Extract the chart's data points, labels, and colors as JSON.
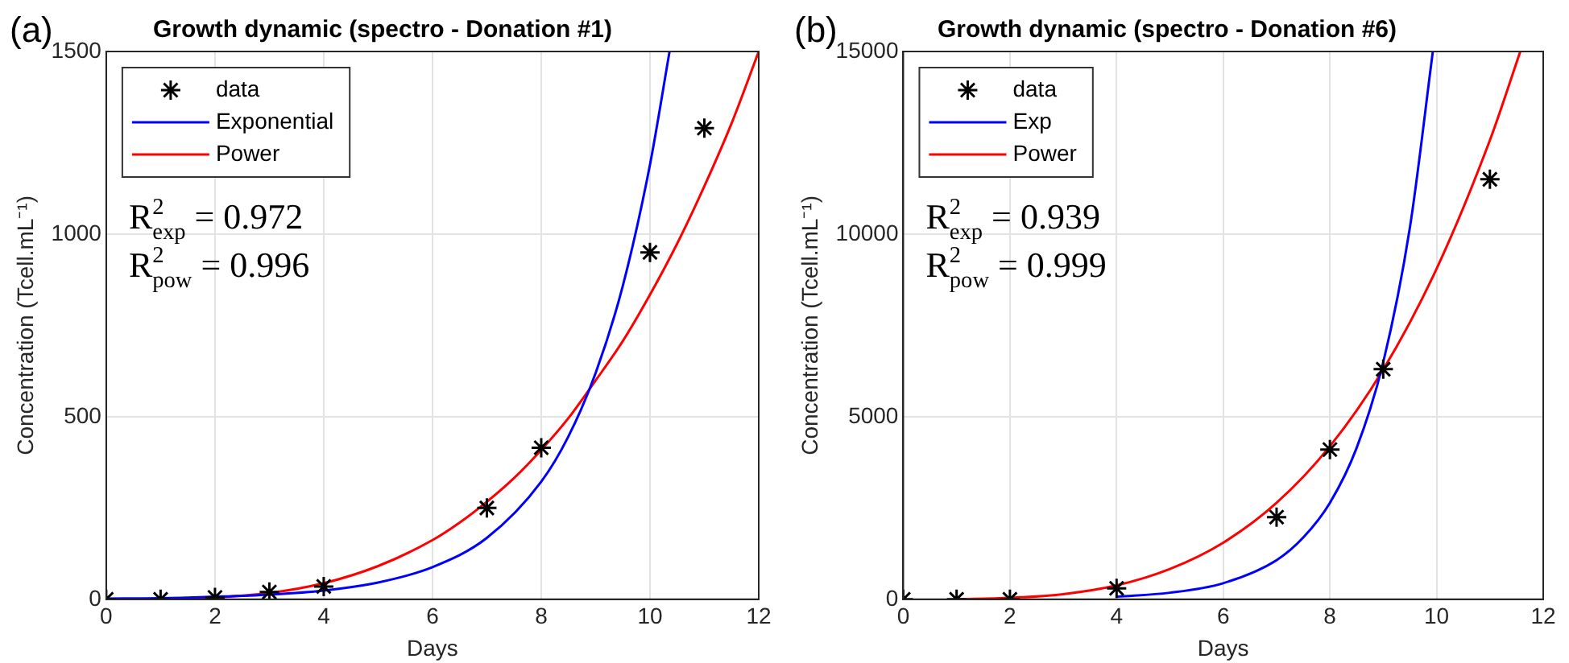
{
  "chart_data": [
    {
      "type": "line",
      "title": "Growth dynamic (spectro - Donation #1)",
      "xlabel": "Days",
      "ylabel": "Concentration (Tcell.mL⁻¹)",
      "annotations": [
        "(a)",
        "R$^{2}$$_{exp}$ = 0.972",
        "R$^{2}$$_{pow}$ = 0.996"
      ],
      "series": [
        {
          "name": "data",
          "type": "scatter",
          "color": "#000000",
          "marker": "cross",
          "x": [
            0,
            1,
            2,
            3,
            4,
            7,
            8,
            10,
            11
          ],
          "values": [
            0,
            0,
            5,
            20,
            35,
            250,
            415,
            950,
            1290
          ]
        },
        {
          "name": "Exponential",
          "type": "line",
          "color": "#0000ff",
          "x": [
            0,
            1,
            2,
            3,
            4,
            5,
            6,
            7,
            8,
            8.5,
            9,
            9.5,
            10,
            10.36
          ],
          "values": [
            2,
            3,
            7,
            13,
            24,
            46,
            88,
            168,
            322,
            446,
            619,
            858,
            1190,
            1500
          ]
        },
        {
          "name": "Power",
          "type": "line",
          "color": "#ff0000",
          "x": [
            0,
            1,
            2,
            3,
            4,
            5,
            6,
            6.5,
            7,
            7.5,
            8,
            8.5,
            9,
            9.5,
            10,
            10.5,
            11,
            11.5,
            12
          ],
          "values": [
            0,
            0,
            5,
            17,
            44,
            91,
            162,
            210,
            267,
            332,
            409,
            496,
            599,
            707,
            834,
            974,
            1131,
            1303,
            1500
          ]
        }
      ],
      "xlim": [
        0,
        12
      ],
      "xticks": [
        0,
        2,
        4,
        6,
        8,
        10,
        12
      ],
      "ylim": [
        0,
        1500
      ],
      "yticks": [
        0,
        500,
        1000,
        1500
      ],
      "grid": true,
      "legend": "top left",
      "line_style": "solid"
    },
    {
      "type": "line",
      "title": "Growth dynamic (spectro - Donation #6)",
      "xlabel": "Days",
      "ylabel": "Concentration (Tcell.mL⁻¹)",
      "annotations": [
        "(b)",
        "R$^{2}$$_{exp}$ = 0.939",
        "R$^{2}$$_{pow}$ = 0.999"
      ],
      "series": [
        {
          "name": "data",
          "type": "scatter",
          "color": "#000000",
          "marker": "cross",
          "x": [
            0,
            1,
            2,
            4,
            7,
            8,
            9,
            11
          ],
          "values": [
            0,
            0,
            0,
            300,
            2250,
            4100,
            6300,
            11500
          ]
        },
        {
          "name": "Exp",
          "type": "line",
          "color": "#0000ff",
          "x": [
            4,
            5,
            6,
            7,
            7.5,
            8,
            8.5,
            9,
            9.5,
            9.93
          ],
          "values": [
            70,
            180,
            440,
            1070,
            1690,
            2640,
            4140,
            6490,
            10180,
            15000
          ]
        },
        {
          "name": "Power",
          "type": "line",
          "color": "#ff0000",
          "x": [
            1,
            2,
            3,
            4,
            5,
            6,
            7,
            8,
            9,
            10,
            11,
            11.57
          ],
          "values": [
            0,
            40,
            140,
            380,
            830,
            1550,
            2640,
            4190,
            6290,
            9050,
            12570,
            15000
          ]
        }
      ],
      "xlim": [
        0,
        12
      ],
      "xticks": [
        0,
        2,
        4,
        6,
        8,
        10,
        12
      ],
      "ylim": [
        0,
        15000
      ],
      "yticks": [
        0,
        5000,
        10000,
        15000
      ],
      "grid": true,
      "legend": "top left",
      "line_style": "solid"
    }
  ]
}
